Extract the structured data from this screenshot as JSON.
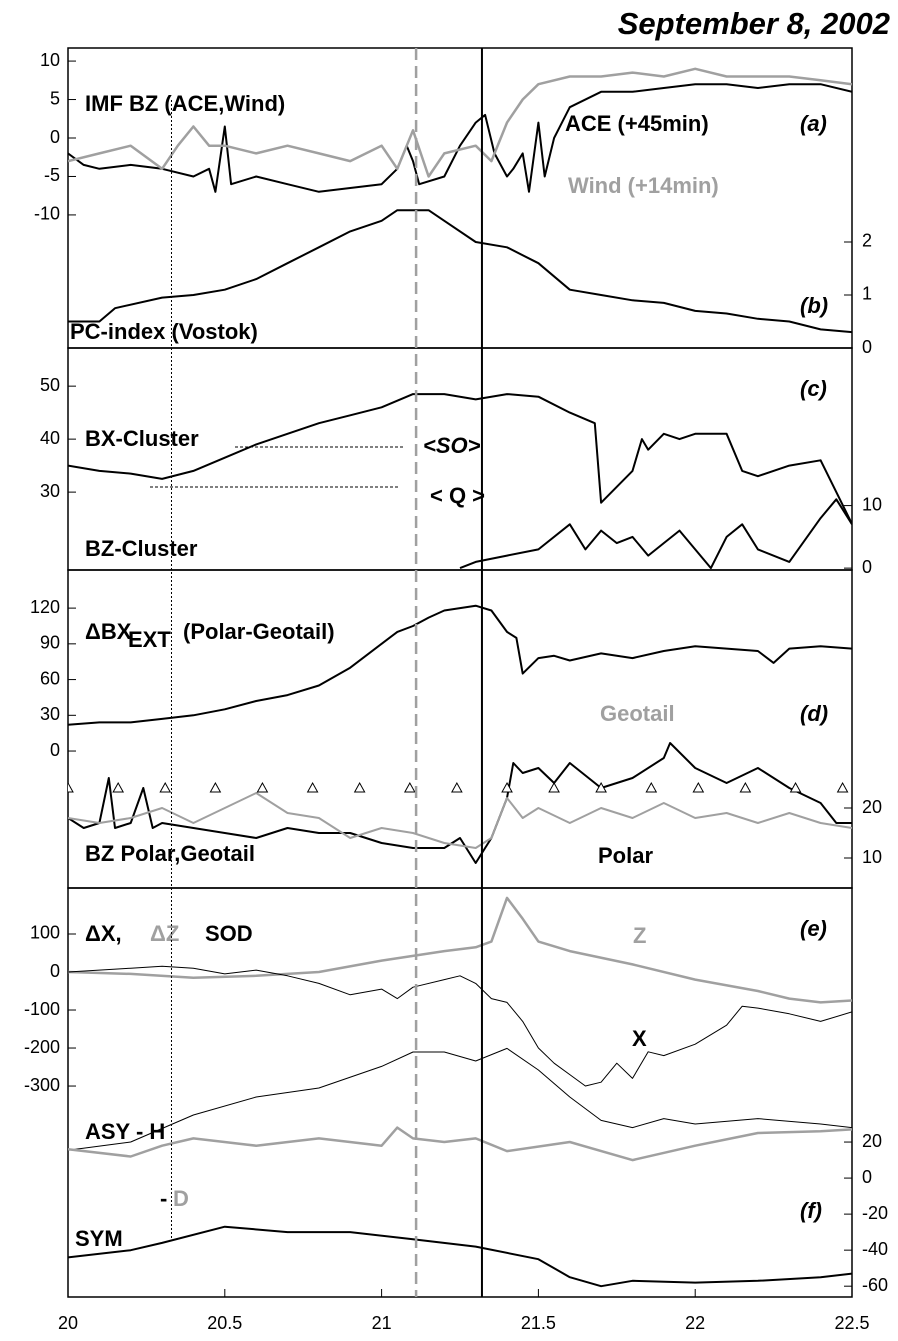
{
  "title": "September 8, 2002",
  "vlines": [
    20.33,
    21.11,
    21.32
  ],
  "chart_data": [
    {
      "type": "line",
      "ylim": [
        -27.3,
        11.7
      ],
      "yticks": [
        -10,
        -5,
        0,
        5,
        10
      ],
      "y2lim": [
        0,
        5.66
      ],
      "y2ticks": [
        0,
        1,
        2
      ],
      "annotations": [
        "IMF BZ (ACE,Wind)",
        "(a)",
        "(b)"
      ],
      "series": [
        {
          "name": "ACE (+45min)",
          "color": "#000000",
          "line_width": 2,
          "x": [
            20.0,
            20.05,
            20.1,
            20.2,
            20.3,
            20.4,
            20.45,
            20.47,
            20.5,
            20.52,
            20.6,
            20.7,
            20.8,
            20.9,
            21.0,
            21.05,
            21.08,
            21.1,
            21.12,
            21.2,
            21.25,
            21.3,
            21.33,
            21.36,
            21.4,
            21.42,
            21.45,
            21.47,
            21.5,
            21.52,
            21.55,
            21.6,
            21.7,
            21.8,
            21.9,
            22.0,
            22.1,
            22.2,
            22.3,
            22.4,
            22.5
          ],
          "values": [
            -2,
            -3.5,
            -4,
            -3.5,
            -4,
            -5,
            -4,
            -7,
            1.5,
            -6,
            -5,
            -6,
            -7,
            -6.5,
            -6,
            -4,
            -1,
            -3,
            -6,
            -5,
            -1,
            2,
            3,
            -2,
            -5,
            -4,
            -2,
            -7,
            2,
            -5,
            0,
            4,
            6,
            6,
            6.5,
            7,
            7,
            6.5,
            7,
            7,
            6
          ]
        },
        {
          "name": "Wind (+14min)",
          "color": "#a0a0a0",
          "line_width": 2.5,
          "x": [
            20.0,
            20.1,
            20.2,
            20.3,
            20.35,
            20.4,
            20.45,
            20.5,
            20.6,
            20.7,
            20.8,
            20.9,
            21.0,
            21.05,
            21.1,
            21.15,
            21.2,
            21.3,
            21.35,
            21.4,
            21.45,
            21.5,
            21.6,
            21.7,
            21.8,
            21.9,
            22.0,
            22.1,
            22.2,
            22.3,
            22.4,
            22.5
          ],
          "values": [
            -3,
            -2,
            -1,
            -4,
            -1,
            1.5,
            -1,
            -1,
            -2,
            -1,
            -2,
            -3,
            -1,
            -4,
            1,
            -5,
            -2,
            -1,
            -3,
            2,
            5,
            7,
            8,
            8,
            8.5,
            8,
            9,
            8,
            8,
            8,
            7.5,
            7
          ]
        },
        {
          "name": "PC-index (Vostok)",
          "color": "#000000",
          "line_width": 2,
          "axis": "y2",
          "x": [
            20.0,
            20.1,
            20.15,
            20.3,
            20.4,
            20.5,
            20.6,
            20.7,
            20.8,
            20.9,
            21.0,
            21.05,
            21.15,
            21.2,
            21.3,
            21.4,
            21.5,
            21.6,
            21.7,
            21.8,
            21.9,
            22.0,
            22.1,
            22.2,
            22.3,
            22.4,
            22.5
          ],
          "values": [
            0.5,
            0.5,
            0.75,
            0.95,
            1.0,
            1.1,
            1.3,
            1.6,
            1.9,
            2.2,
            2.4,
            2.6,
            2.6,
            2.4,
            2.0,
            1.9,
            1.6,
            1.1,
            1.0,
            0.9,
            0.85,
            0.7,
            0.65,
            0.55,
            0.5,
            0.35,
            0.3
          ]
        }
      ]
    },
    {
      "type": "line",
      "ylim": [
        15.3,
        57.2
      ],
      "yticks": [
        30,
        40,
        50
      ],
      "y2lim": [
        -0.3,
        35.2
      ],
      "y2ticks": [
        0,
        10
      ],
      "annotations": [
        "<SO>",
        "< Q >",
        "(c)"
      ],
      "series": [
        {
          "name": "BX-Cluster",
          "color": "#000000",
          "line_width": 2,
          "x": [
            20.0,
            20.1,
            20.2,
            20.3,
            20.4,
            20.5,
            20.6,
            20.7,
            20.8,
            20.9,
            21.0,
            21.1,
            21.2,
            21.3,
            21.4,
            21.5,
            21.6,
            21.68,
            21.7,
            21.75,
            21.8,
            21.83,
            21.85,
            21.9,
            21.95,
            22.0,
            22.1,
            22.15,
            22.2,
            22.3,
            22.4,
            22.45,
            22.5
          ],
          "values": [
            35,
            34,
            33.5,
            32.5,
            34,
            36.5,
            39,
            41,
            43,
            44.5,
            46,
            48.5,
            48.5,
            47.5,
            48.5,
            48,
            45,
            43,
            28,
            31,
            34,
            40,
            38,
            41,
            40,
            41,
            41,
            34,
            33,
            35,
            36,
            30,
            24
          ]
        },
        {
          "name": "BZ-Cluster",
          "color": "#000000",
          "line_width": 2,
          "axis": "y2",
          "x": [
            21.25,
            21.3,
            21.4,
            21.5,
            21.6,
            21.65,
            21.7,
            21.75,
            21.8,
            21.85,
            21.9,
            21.95,
            22.0,
            22.05,
            22.1,
            22.15,
            22.2,
            22.3,
            22.4,
            22.45,
            22.5
          ],
          "values": [
            0,
            1,
            2,
            3,
            7,
            3,
            6,
            4,
            5,
            2,
            4,
            6,
            3,
            0,
            5,
            7,
            3,
            1,
            8,
            11,
            7
          ]
        }
      ]
    },
    {
      "type": "line",
      "ylim": [
        -115,
        152
      ],
      "yticks": [
        0,
        30,
        60,
        90,
        120
      ],
      "y2lim": [
        4,
        67.6
      ],
      "y2ticks": [
        10,
        20
      ],
      "annotations": [
        "EXT",
        "(Polar-Geotail)",
        "BZ Polar,Geotail",
        "(d)"
      ],
      "series": [
        {
          "name": "ΔBX",
          "color": "#000000",
          "line_width": 2,
          "x": [
            20.0,
            20.1,
            20.2,
            20.3,
            20.4,
            20.5,
            20.6,
            20.7,
            20.8,
            20.9,
            21.0,
            21.05,
            21.1,
            21.15,
            21.2,
            21.3,
            21.35,
            21.4,
            21.43,
            21.45,
            21.5,
            21.55,
            21.6,
            21.7,
            21.8,
            21.9,
            22.0,
            22.1,
            22.2,
            22.25,
            22.3,
            22.4,
            22.5
          ],
          "values": [
            22,
            24,
            24,
            27,
            30,
            35,
            42,
            47,
            55,
            70,
            90,
            100,
            105,
            112,
            118,
            122,
            118,
            100,
            95,
            65,
            78,
            80,
            76,
            82,
            78,
            84,
            88,
            86,
            84,
            74,
            86,
            88,
            86
          ]
        },
        {
          "name": "Polar",
          "color": "#000000",
          "line_width": 2,
          "axis": "y2",
          "x": [
            20.0,
            20.05,
            20.1,
            20.13,
            20.15,
            20.2,
            20.24,
            20.27,
            20.3,
            20.4,
            20.5,
            20.6,
            20.7,
            20.8,
            20.9,
            21.0,
            21.1,
            21.2,
            21.25,
            21.3,
            21.35,
            21.4,
            21.42,
            21.45,
            21.5,
            21.55,
            21.6,
            21.7,
            21.8,
            21.9,
            21.92,
            22.0,
            22.1,
            22.2,
            22.3,
            22.4,
            22.45,
            22.5
          ],
          "values": [
            18,
            16,
            17,
            26,
            16,
            17,
            24,
            16,
            17,
            16,
            15,
            14,
            16,
            15,
            15,
            13,
            12,
            12,
            14,
            9,
            14,
            22,
            29,
            27,
            28,
            25,
            29,
            24,
            26,
            30,
            33,
            28,
            25,
            28,
            24,
            21,
            17,
            17
          ]
        },
        {
          "name": "Geotail",
          "color": "#a0a0a0",
          "line_width": 2,
          "axis": "y2",
          "x": [
            20.0,
            20.1,
            20.2,
            20.3,
            20.4,
            20.5,
            20.6,
            20.7,
            20.8,
            20.9,
            21.0,
            21.1,
            21.2,
            21.3,
            21.35,
            21.4,
            21.45,
            21.5,
            21.6,
            21.7,
            21.8,
            21.9,
            22.0,
            22.1,
            22.2,
            22.3,
            22.4,
            22.5
          ],
          "values": [
            18,
            17,
            18,
            20,
            17,
            20,
            23,
            19,
            18,
            14,
            16,
            15,
            13,
            12,
            14,
            22,
            18,
            20,
            17,
            20,
            18,
            21,
            18,
            19,
            17,
            19,
            17,
            16
          ]
        },
        {
          "marker": "triangle",
          "color": "#000000",
          "axis": "y2",
          "x": [
            20.0,
            20.16,
            20.31,
            20.47,
            20.62,
            20.78,
            20.93,
            21.09,
            21.24,
            21.4,
            21.55,
            21.7,
            21.86,
            22.01,
            22.16,
            22.32,
            22.47
          ],
          "values": [
            24,
            24,
            24,
            24,
            24,
            24,
            24,
            24,
            24,
            24,
            24,
            24,
            24,
            24,
            24,
            24,
            24
          ]
        }
      ]
    },
    {
      "type": "line",
      "xlim": [
        20,
        22.5
      ],
      "xticks": [
        20,
        20.5,
        21,
        21.5,
        22,
        22.5
      ],
      "ylim": [
        -855,
        221
      ],
      "yticks": [
        -300,
        -200,
        -100,
        0,
        100
      ],
      "y2lim": [
        -66,
        161
      ],
      "y2ticks": [
        -60,
        -40,
        -20,
        0,
        20
      ],
      "annotations": [
        "ΔX,",
        "ΔZ",
        "SOD",
        "(e)",
        "-",
        "(f)"
      ],
      "series": [
        {
          "name": "Z",
          "color": "#a0a0a0",
          "line_width": 2.5,
          "x": [
            20.0,
            20.2,
            20.4,
            20.6,
            20.8,
            21.0,
            21.2,
            21.3,
            21.35,
            21.4,
            21.45,
            21.5,
            21.6,
            21.8,
            22.0,
            22.2,
            22.3,
            22.4,
            22.5
          ],
          "values": [
            0,
            -5,
            -15,
            -10,
            0,
            30,
            55,
            65,
            80,
            195,
            140,
            80,
            55,
            20,
            -20,
            -50,
            -70,
            -80,
            -75
          ]
        },
        {
          "name": "X",
          "color": "#000000",
          "line_width": 1,
          "x": [
            20.0,
            20.2,
            20.3,
            20.4,
            20.5,
            20.6,
            20.7,
            20.8,
            20.9,
            21.0,
            21.05,
            21.1,
            21.2,
            21.25,
            21.3,
            21.35,
            21.4,
            21.45,
            21.5,
            21.55,
            21.6,
            21.65,
            21.7,
            21.75,
            21.8,
            21.85,
            21.9,
            22.0,
            22.1,
            22.15,
            22.2,
            22.3,
            22.4,
            22.5
          ],
          "values": [
            0,
            10,
            15,
            10,
            -5,
            5,
            -10,
            -30,
            -60,
            -45,
            -70,
            -40,
            -20,
            -10,
            -30,
            -70,
            -80,
            -130,
            -200,
            -240,
            -270,
            -300,
            -290,
            -240,
            -280,
            -210,
            -220,
            -190,
            -140,
            -90,
            -95,
            -110,
            -130,
            -105
          ]
        },
        {
          "name": "ASY  - H",
          "color": "#000000",
          "line_width": 1,
          "axis": "y2",
          "x": [
            20.0,
            20.2,
            20.4,
            20.6,
            20.8,
            21.0,
            21.1,
            21.2,
            21.3,
            21.4,
            21.5,
            21.6,
            21.7,
            21.8,
            21.9,
            22.0,
            22.2,
            22.4,
            22.5
          ],
          "values": [
            15.5,
            20,
            35,
            45,
            50,
            62,
            70,
            70,
            65,
            72,
            60,
            45,
            32,
            28,
            33,
            30,
            33,
            30,
            28
          ]
        },
        {
          "name": "D",
          "color": "#a0a0a0",
          "line_width": 2.5,
          "axis": "y2",
          "x": [
            20.0,
            20.2,
            20.3,
            20.4,
            20.6,
            20.8,
            21.0,
            21.05,
            21.1,
            21.2,
            21.3,
            21.4,
            21.6,
            21.8,
            22.0,
            22.2,
            22.4,
            22.5
          ],
          "values": [
            16,
            12,
            18,
            22,
            18,
            22,
            18,
            28,
            22,
            20,
            22,
            15,
            20,
            10,
            18,
            25,
            26,
            27
          ]
        },
        {
          "name": "SYM",
          "color": "#000000",
          "line_width": 2,
          "axis": "y2",
          "x": [
            20.0,
            20.2,
            20.3,
            20.5,
            20.7,
            20.9,
            21.1,
            21.3,
            21.5,
            21.6,
            21.7,
            21.8,
            22.0,
            22.2,
            22.4,
            22.5
          ],
          "values": [
            -44,
            -40,
            -36,
            -27,
            -30,
            -30,
            -34,
            -38,
            -45,
            -55,
            -60,
            -57,
            -58,
            -57,
            -55,
            -53
          ]
        }
      ]
    }
  ]
}
